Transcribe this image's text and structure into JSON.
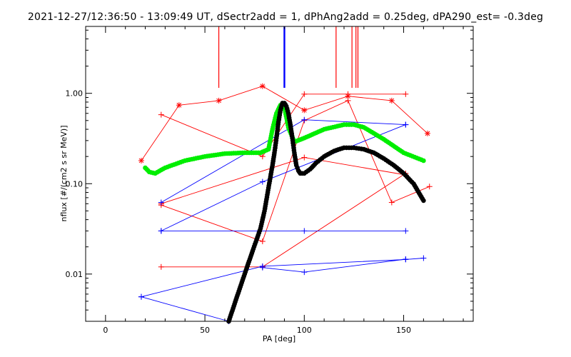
{
  "chart_data": {
    "type": "scatter",
    "title": "2021-12-27/12:36:50 - 13:09:49 UT, dSectr2add = 1, dPhAng2add = 0.25deg, dPA290_est=  -0.3deg",
    "xlabel": "PA [deg]",
    "ylabel": "nflux [#/(cm2 s sr MeV)]",
    "xlim": [
      -10,
      185
    ],
    "ylim": [
      0.003,
      5.5
    ],
    "yscale": "log",
    "x_ticks": [
      0,
      50,
      100,
      150
    ],
    "x_tick_labels": [
      "0",
      "50",
      "100",
      "150"
    ],
    "y_ticks": [
      0.01,
      0.1,
      1.0
    ],
    "y_tick_labels": [
      "0.01",
      "0.10",
      "1.00"
    ],
    "grid": false,
    "colors": {
      "red": "#ff0000",
      "blue": "#0000ff",
      "green": "#00ee00",
      "black": "#000000"
    },
    "red_vertical_markers": [
      57,
      116,
      124,
      126,
      127
    ],
    "blue_vertical_markers": [
      90
    ],
    "series": [
      {
        "color": "red",
        "marker": "asterisk",
        "x": [
          18,
          37,
          57,
          79,
          100,
          122,
          144,
          162
        ],
        "y": [
          0.18,
          0.74,
          0.83,
          1.2,
          0.65,
          0.93,
          0.83,
          0.36
        ]
      },
      {
        "color": "red",
        "marker": "plus",
        "x": [
          28,
          79,
          100,
          122,
          151
        ],
        "y": [
          0.58,
          0.2,
          0.98,
          0.98,
          0.98
        ]
      },
      {
        "color": "red",
        "marker": "plus",
        "x": [
          28,
          79,
          100,
          122,
          144,
          163
        ],
        "y": [
          0.058,
          0.023,
          0.5,
          0.83,
          0.062,
          0.093
        ]
      },
      {
        "color": "red",
        "marker": "plus",
        "x": [
          28,
          100,
          151
        ],
        "y": [
          0.06,
          0.195,
          0.125
        ]
      },
      {
        "color": "red",
        "marker": "plus",
        "x": [
          28,
          79,
          151
        ],
        "y": [
          0.012,
          0.012,
          0.13
        ]
      },
      {
        "color": "blue",
        "marker": "plus",
        "x": [
          28,
          100,
          151
        ],
        "y": [
          0.062,
          0.51,
          0.45
        ]
      },
      {
        "color": "blue",
        "marker": "plus",
        "x": [
          28,
          79,
          151
        ],
        "y": [
          0.03,
          0.105,
          0.45
        ]
      },
      {
        "color": "blue",
        "marker": "plus",
        "x": [
          28,
          100,
          151
        ],
        "y": [
          0.03,
          0.03,
          0.03
        ]
      },
      {
        "color": "blue",
        "marker": "plus",
        "x": [
          18,
          79,
          151,
          160
        ],
        "y": [
          0.0056,
          0.0122,
          0.0145,
          0.015
        ]
      },
      {
        "color": "blue",
        "marker": "plus",
        "x": [
          79,
          100,
          151
        ],
        "y": [
          0.0118,
          0.0105,
          0.0146
        ]
      },
      {
        "color": "blue",
        "marker": "plus",
        "x": [
          18,
          62
        ],
        "y": [
          0.0056,
          0.003
        ]
      },
      {
        "color": "green",
        "marker": "dot",
        "x": [
          20,
          22,
          25,
          30,
          40,
          50,
          60,
          70,
          78,
          82,
          84,
          86,
          88,
          90,
          92,
          95,
          100,
          110,
          120,
          125,
          130,
          140,
          150,
          160
        ],
        "y": [
          0.15,
          0.135,
          0.13,
          0.15,
          0.18,
          0.2,
          0.215,
          0.22,
          0.22,
          0.24,
          0.4,
          0.6,
          0.74,
          0.7,
          0.42,
          0.29,
          0.32,
          0.4,
          0.45,
          0.45,
          0.42,
          0.31,
          0.22,
          0.18
        ]
      },
      {
        "color": "black",
        "marker": "dot",
        "x": [
          62,
          66,
          70,
          74,
          78,
          80,
          82,
          83,
          84,
          85,
          86,
          87,
          88,
          89,
          90,
          91,
          92,
          93,
          94,
          95,
          96,
          97,
          98,
          100,
          103,
          106,
          110,
          115,
          120,
          125,
          130,
          135,
          140,
          145,
          150,
          155,
          160
        ],
        "y": [
          0.003,
          0.0055,
          0.01,
          0.018,
          0.032,
          0.05,
          0.09,
          0.12,
          0.16,
          0.22,
          0.32,
          0.48,
          0.65,
          0.78,
          0.78,
          0.72,
          0.6,
          0.45,
          0.32,
          0.22,
          0.16,
          0.14,
          0.13,
          0.13,
          0.145,
          0.17,
          0.2,
          0.23,
          0.25,
          0.25,
          0.24,
          0.22,
          0.19,
          0.16,
          0.13,
          0.1,
          0.065
        ]
      }
    ]
  }
}
